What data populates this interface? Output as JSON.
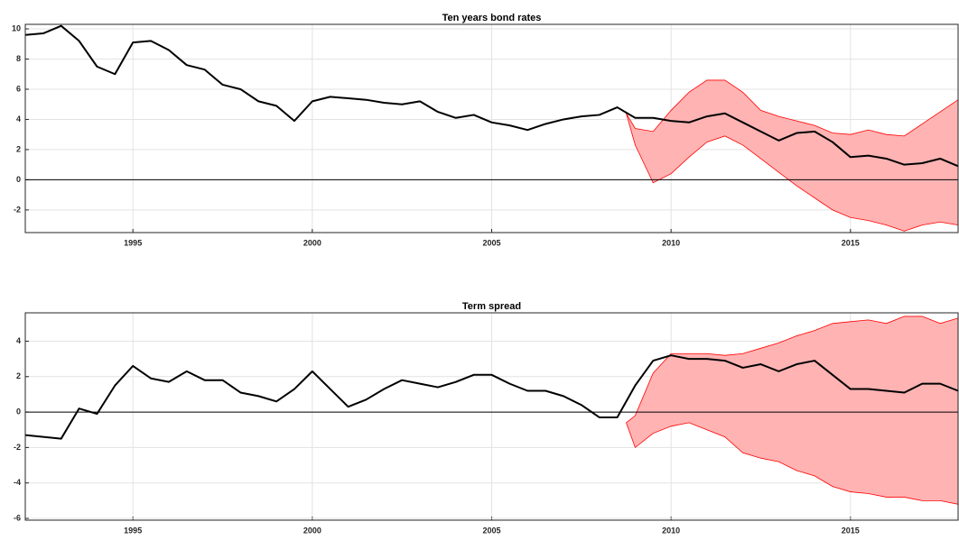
{
  "chart_data": [
    {
      "type": "line",
      "title": "Ten years bond rates",
      "x": [
        1992.0,
        1992.5,
        1993.0,
        1993.5,
        1994.0,
        1994.5,
        1995.0,
        1995.5,
        1996.0,
        1996.5,
        1997.0,
        1997.5,
        1998.0,
        1998.5,
        1999.0,
        1999.5,
        2000.0,
        2000.5,
        2001.0,
        2001.5,
        2002.0,
        2002.5,
        2003.0,
        2003.5,
        2004.0,
        2004.5,
        2005.0,
        2005.5,
        2006.0,
        2006.5,
        2007.0,
        2007.5,
        2008.0,
        2008.5,
        2009.0,
        2009.5,
        2010.0,
        2010.5,
        2011.0,
        2011.5,
        2012.0,
        2012.5,
        2013.0,
        2013.5,
        2014.0,
        2014.5,
        2015.0,
        2015.5,
        2016.0,
        2016.5,
        2017.0,
        2017.5,
        2018.0
      ],
      "series": [
        {
          "color": "#000000",
          "values": [
            9.6,
            9.7,
            10.2,
            9.2,
            7.5,
            7.0,
            9.1,
            9.2,
            8.6,
            7.6,
            7.3,
            6.3,
            6.0,
            5.2,
            4.9,
            3.9,
            5.2,
            5.5,
            5.4,
            5.3,
            5.1,
            5.0,
            5.2,
            4.5,
            4.1,
            4.3,
            3.8,
            3.6,
            3.3,
            3.7,
            4.0,
            4.2,
            4.3,
            4.8,
            4.1,
            4.1,
            3.9,
            3.8,
            4.2,
            4.4,
            3.8,
            3.2,
            2.6,
            3.1,
            3.2,
            2.5,
            1.5,
            1.6,
            1.4,
            1.0,
            1.1,
            1.4,
            0.9
          ]
        }
      ],
      "band": {
        "color": "#ff0000",
        "fill": "#ffb3b3",
        "x": [
          2008.75,
          2009.0,
          2009.5,
          2010.0,
          2010.5,
          2011.0,
          2011.5,
          2012.0,
          2012.5,
          2013.0,
          2013.5,
          2014.0,
          2014.5,
          2015.0,
          2015.5,
          2016.0,
          2016.5,
          2017.0,
          2017.5,
          2018.0
        ],
        "upper": [
          4.4,
          3.4,
          3.2,
          4.6,
          5.8,
          6.6,
          6.6,
          5.8,
          4.6,
          4.2,
          3.9,
          3.6,
          3.1,
          3.0,
          3.3,
          3.0,
          2.9,
          3.7,
          4.5,
          5.3
        ],
        "lower": [
          4.4,
          2.3,
          -0.2,
          0.4,
          1.5,
          2.5,
          2.9,
          2.3,
          1.4,
          0.5,
          -0.4,
          -1.2,
          -2.0,
          -2.5,
          -2.7,
          -3.0,
          -3.4,
          -3.0,
          -2.8,
          -3.0
        ]
      },
      "hline": 0,
      "xlim": [
        1992,
        2018
      ],
      "xticks": [
        1995,
        2000,
        2005,
        2010,
        2015
      ],
      "ylim": [
        -3.5,
        10.3
      ],
      "yticks": [
        -2,
        0,
        2,
        4,
        6,
        8,
        10
      ],
      "grid": true
    },
    {
      "type": "line",
      "title": "Term spread",
      "x": [
        1992.0,
        1992.5,
        1993.0,
        1993.5,
        1994.0,
        1994.5,
        1995.0,
        1995.5,
        1996.0,
        1996.5,
        1997.0,
        1997.5,
        1998.0,
        1998.5,
        1999.0,
        1999.5,
        2000.0,
        2000.5,
        2001.0,
        2001.5,
        2002.0,
        2002.5,
        2003.0,
        2003.5,
        2004.0,
        2004.5,
        2005.0,
        2005.5,
        2006.0,
        2006.5,
        2007.0,
        2007.5,
        2008.0,
        2008.5,
        2009.0,
        2009.5,
        2010.0,
        2010.5,
        2011.0,
        2011.5,
        2012.0,
        2012.5,
        2013.0,
        2013.5,
        2014.0,
        2014.5,
        2015.0,
        2015.5,
        2016.0,
        2016.5,
        2017.0,
        2017.5,
        2018.0
      ],
      "series": [
        {
          "color": "#000000",
          "values": [
            -1.3,
            -1.4,
            -1.5,
            0.2,
            -0.1,
            1.5,
            2.6,
            1.9,
            1.7,
            2.3,
            1.8,
            1.8,
            1.1,
            0.9,
            0.6,
            1.3,
            2.3,
            1.3,
            0.3,
            0.7,
            1.3,
            1.8,
            1.6,
            1.4,
            1.7,
            2.1,
            2.1,
            1.6,
            1.2,
            1.2,
            0.9,
            0.4,
            -0.3,
            -0.3,
            1.5,
            2.9,
            3.2,
            3.0,
            3.0,
            2.9,
            2.5,
            2.7,
            2.3,
            2.7,
            2.9,
            2.1,
            1.3,
            1.3,
            1.2,
            1.1,
            1.6,
            1.6,
            1.2
          ]
        }
      ],
      "band": {
        "color": "#ff0000",
        "fill": "#ffb3b3",
        "x": [
          2008.75,
          2009.0,
          2009.5,
          2010.0,
          2010.5,
          2011.0,
          2011.5,
          2012.0,
          2012.5,
          2013.0,
          2013.5,
          2014.0,
          2014.5,
          2015.0,
          2015.5,
          2016.0,
          2016.5,
          2017.0,
          2017.5,
          2018.0
        ],
        "upper": [
          -0.6,
          -0.2,
          2.2,
          3.3,
          3.3,
          3.3,
          3.2,
          3.3,
          3.6,
          3.9,
          4.3,
          4.6,
          5.0,
          5.1,
          5.2,
          5.0,
          5.4,
          5.4,
          5.0,
          5.3
        ],
        "lower": [
          -0.6,
          -2.0,
          -1.2,
          -0.8,
          -0.6,
          -1.0,
          -1.4,
          -2.3,
          -2.6,
          -2.8,
          -3.3,
          -3.6,
          -4.2,
          -4.5,
          -4.6,
          -4.8,
          -4.8,
          -5.0,
          -5.0,
          -5.2
        ]
      },
      "hline": 0,
      "xlim": [
        1992,
        2018
      ],
      "xticks": [
        1995,
        2000,
        2005,
        2010,
        2015
      ],
      "ylim": [
        -6.1,
        5.6
      ],
      "yticks": [
        -6,
        -4,
        -2,
        0,
        2,
        4
      ],
      "grid": true
    }
  ]
}
